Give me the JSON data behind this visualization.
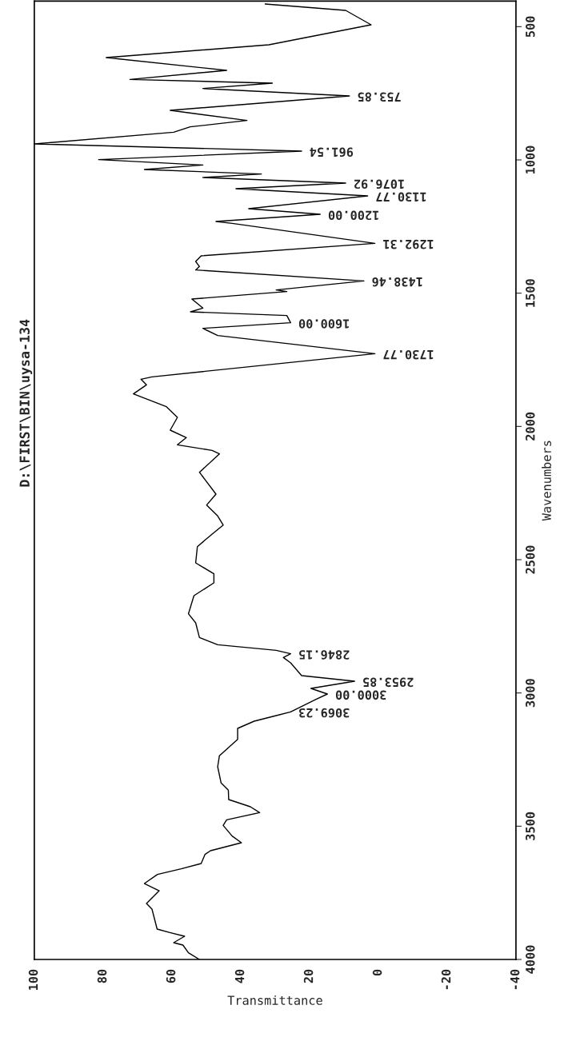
{
  "chart_data": {
    "type": "line",
    "title": "D:\\FIRST\\BIN\\uysa-134",
    "xlabel": "Transmittance",
    "ylabel": "Wavenumbers",
    "xlim": [
      100,
      -40
    ],
    "ylim": [
      4000,
      404
    ],
    "xticks": [
      100,
      80,
      60,
      40,
      20,
      0,
      -20,
      -40
    ],
    "yticks": [
      500,
      1000,
      1500,
      2000,
      2500,
      3000,
      3500,
      4000
    ],
    "x": [
      52.0,
      55.2,
      56.8,
      59.5,
      56.3,
      60.6,
      64.3,
      65.8,
      67.4,
      63.7,
      68.0,
      64.2,
      57.3,
      51.5,
      50.4,
      48.8,
      39.8,
      42.5,
      45.1,
      44.1,
      34.5,
      37.2,
      43.5,
      43.6,
      45.7,
      46.7,
      46.2,
      40.9,
      40.9,
      36.1,
      29.7,
      25.5,
      18.1,
      14.8,
      19.6,
      6.9,
      22.3,
      25.5,
      27.6,
      25.5,
      29.7,
      46.7,
      52.0,
      53.1,
      55.2,
      53.6,
      47.8,
      47.8,
      53.1,
      52.6,
      48.8,
      45.1,
      46.7,
      49.9,
      47.2,
      52.0,
      46.2,
      48.3,
      58.4,
      55.8,
      60.5,
      58.4,
      61.6,
      71.2,
      67.4,
      69.0,
      65.8,
      1.0,
      46.7,
      51.0,
      25.5,
      26.6,
      54.6,
      51.0,
      54.2,
      26.6,
      29.7,
      4.2,
      53.1,
      52.0,
      53.1,
      51.5,
      1.0,
      42.5,
      47.2,
      16.9,
      37.7,
      3.1,
      41.4,
      9.5,
      51.0,
      34.0,
      68.0,
      51.0,
      81.3,
      22.3,
      99.9,
      59.5,
      54.7,
      38.2,
      60.5,
      8.4,
      51.0,
      30.8,
      72.2,
      44.1,
      79.1,
      31.8,
      2.1,
      9.5,
      32.9
    ],
    "series": [
      {
        "color": "#000000",
        "values": [
          4000,
          3975,
          3946,
          3937,
          3913,
          3899,
          3886,
          3811,
          3790,
          3742,
          3715,
          3681,
          3660,
          3640,
          3606,
          3592,
          3562,
          3537,
          3497,
          3476,
          3449,
          3427,
          3400,
          3365,
          3338,
          3277,
          3236,
          3174,
          3133,
          3106,
          3085,
          3071,
          3024,
          3004,
          2983,
          2956,
          2935,
          2887,
          2867,
          2853,
          2840,
          2819,
          2792,
          2737,
          2703,
          2635,
          2587,
          2553,
          2512,
          2451,
          2409,
          2370,
          2336,
          2295,
          2254,
          2172,
          2103,
          2090,
          2069,
          2042,
          2014,
          1966,
          1926,
          1878,
          1844,
          1823,
          1814,
          1727,
          1659,
          1632,
          1611,
          1584,
          1570,
          1556,
          1522,
          1494,
          1488,
          1454,
          1413,
          1400,
          1381,
          1360,
          1313,
          1238,
          1231,
          1204,
          1183,
          1135,
          1108,
          1087,
          1066,
          1053,
          1036,
          1019,
          999,
          967,
          940,
          896,
          876,
          852,
          814,
          760,
          732,
          712,
          698,
          664,
          616,
          568,
          493,
          439,
          415
        ]
      }
    ],
    "annotations": [
      {
        "text": "753.85",
        "x": 8.4,
        "y": 760
      },
      {
        "text": "961.54",
        "x": 22.3,
        "y": 967
      },
      {
        "text": "1076.92",
        "x": 9.5,
        "y": 1087
      },
      {
        "text": "1130.77",
        "x": 3.1,
        "y": 1135
      },
      {
        "text": "1200.00",
        "x": 16.9,
        "y": 1204
      },
      {
        "text": "1292.31",
        "x": 1.0,
        "y": 1313
      },
      {
        "text": "1438.46",
        "x": 4.2,
        "y": 1454
      },
      {
        "text": "1600.00",
        "x": 25.5,
        "y": 1611
      },
      {
        "text": "1730.77",
        "x": 1.0,
        "y": 1727
      },
      {
        "text": "2846.15",
        "x": 25.5,
        "y": 2853
      },
      {
        "text": "2953.85",
        "x": 6.9,
        "y": 2956
      },
      {
        "text": "3000.00",
        "x": 14.8,
        "y": 3004
      },
      {
        "text": "3069.23",
        "x": 25.5,
        "y": 3071
      }
    ]
  }
}
